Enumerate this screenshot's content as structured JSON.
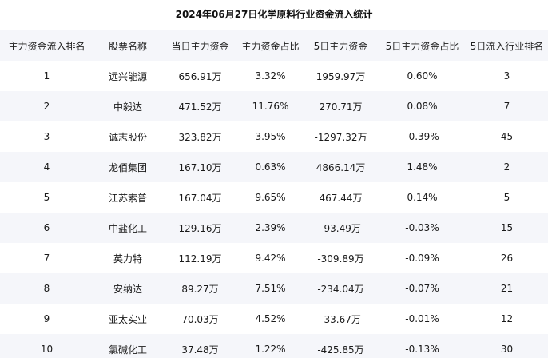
{
  "title": "2024年06月27日化学原料行业资金流入统计",
  "columns": [
    "主力资金流入排名",
    "股票名称",
    "当日主力资金",
    "主力资金占比",
    "5日主力资金",
    "5日主力资金占比",
    "5日流入行业排名"
  ],
  "rows": [
    [
      "1",
      "远兴能源",
      "656.91万",
      "3.32%",
      "1959.97万",
      "0.60%",
      "3"
    ],
    [
      "2",
      "中毅达",
      "471.52万",
      "11.76%",
      "270.71万",
      "0.08%",
      "7"
    ],
    [
      "3",
      "诚志股份",
      "323.82万",
      "3.95%",
      "-1297.32万",
      "-0.39%",
      "45"
    ],
    [
      "4",
      "龙佰集团",
      "167.10万",
      "0.63%",
      "4866.14万",
      "1.48%",
      "2"
    ],
    [
      "5",
      "江苏索普",
      "167.04万",
      "9.65%",
      "467.44万",
      "0.14%",
      "5"
    ],
    [
      "6",
      "中盐化工",
      "129.16万",
      "2.39%",
      "-93.49万",
      "-0.03%",
      "15"
    ],
    [
      "7",
      "英力特",
      "112.19万",
      "9.42%",
      "-309.89万",
      "-0.09%",
      "26"
    ],
    [
      "8",
      "安纳达",
      "89.27万",
      "7.51%",
      "-234.04万",
      "-0.07%",
      "21"
    ],
    [
      "9",
      "亚太实业",
      "70.03万",
      "4.52%",
      "-33.67万",
      "-0.01%",
      "12"
    ],
    [
      "10",
      "氯碱化工",
      "37.48万",
      "1.22%",
      "-425.85万",
      "-0.13%",
      "30"
    ]
  ],
  "colors": {
    "stripe_background": "#f5f6fa",
    "text": "#1a1a1a"
  }
}
